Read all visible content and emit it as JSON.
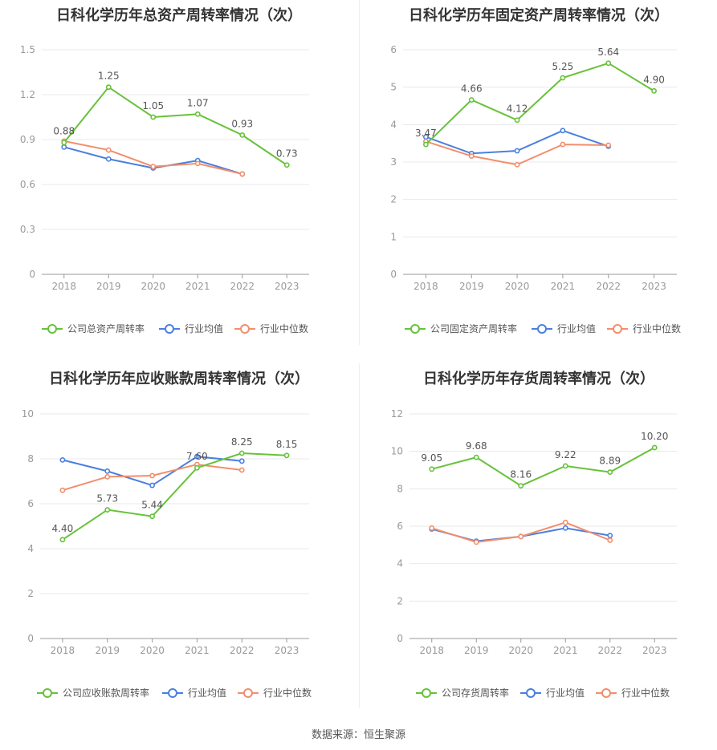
{
  "colors": {
    "company": "#67c23a",
    "avg": "#4a7fe0",
    "median": "#f28e6c",
    "grid": "#e8e8ee",
    "axis": "#999999",
    "tick": "#999999",
    "label": "#555555"
  },
  "footer": "数据来源：恒生聚源",
  "chart_data": [
    {
      "type": "line",
      "title": "日科化学历年总资产周转率情况（次）",
      "categories": [
        "2018",
        "2019",
        "2020",
        "2021",
        "2022",
        "2023"
      ],
      "ylim": [
        0,
        1.5
      ],
      "yticks": [
        "0",
        "0.3",
        "0.6",
        "0.9",
        "1.2",
        "1.5"
      ],
      "series": [
        {
          "name": "公司总资产周转率",
          "key": "company",
          "values": [
            0.88,
            1.25,
            1.05,
            1.07,
            0.93,
            0.73
          ],
          "labels": [
            "0.88",
            "1.25",
            "1.05",
            "1.07",
            "0.93",
            "0.73"
          ]
        },
        {
          "name": "行业均值",
          "key": "avg",
          "values": [
            0.85,
            0.77,
            0.71,
            0.76,
            0.67,
            null
          ]
        },
        {
          "name": "行业中位数",
          "key": "median",
          "values": [
            0.89,
            0.83,
            0.72,
            0.74,
            0.67,
            null
          ]
        }
      ]
    },
    {
      "type": "line",
      "title": "日科化学历年固定资产周转率情况（次）",
      "categories": [
        "2018",
        "2019",
        "2020",
        "2021",
        "2022",
        "2023"
      ],
      "ylim": [
        0,
        6
      ],
      "yticks": [
        "0",
        "1",
        "2",
        "3",
        "4",
        "5",
        "6"
      ],
      "series": [
        {
          "name": "公司固定资产周转率",
          "key": "company",
          "values": [
            3.47,
            4.66,
            4.12,
            5.25,
            5.64,
            4.9
          ],
          "labels": [
            "3.47",
            "4.66",
            "4.12",
            "5.25",
            "5.64",
            "4.90"
          ]
        },
        {
          "name": "行业均值",
          "key": "avg",
          "values": [
            3.67,
            3.23,
            3.3,
            3.84,
            3.42,
            null
          ]
        },
        {
          "name": "行业中位数",
          "key": "median",
          "values": [
            3.55,
            3.16,
            2.93,
            3.47,
            3.45,
            null
          ]
        }
      ]
    },
    {
      "type": "line",
      "title": "日科化学历年应收账款周转率情况（次）",
      "categories": [
        "2018",
        "2019",
        "2020",
        "2021",
        "2022",
        "2023"
      ],
      "ylim": [
        0,
        10
      ],
      "yticks": [
        "0",
        "2",
        "4",
        "6",
        "8",
        "10"
      ],
      "series": [
        {
          "name": "公司应收账款周转率",
          "key": "company",
          "values": [
            4.4,
            5.73,
            5.44,
            7.6,
            8.25,
            8.15
          ],
          "labels": [
            "4.40",
            "5.73",
            "5.44",
            "7.60",
            "8.25",
            "8.15"
          ]
        },
        {
          "name": "行业均值",
          "key": "avg",
          "values": [
            7.95,
            7.45,
            6.82,
            8.1,
            7.9,
            null
          ]
        },
        {
          "name": "行业中位数",
          "key": "median",
          "values": [
            6.6,
            7.2,
            7.25,
            7.75,
            7.5,
            null
          ]
        }
      ]
    },
    {
      "type": "line",
      "title": "日科化学历年存货周转率情况（次）",
      "categories": [
        "2018",
        "2019",
        "2020",
        "2021",
        "2022",
        "2023"
      ],
      "ylim": [
        0,
        12
      ],
      "yticks": [
        "0",
        "2",
        "4",
        "6",
        "8",
        "10",
        "12"
      ],
      "series": [
        {
          "name": "公司存货周转率",
          "key": "company",
          "values": [
            9.05,
            9.68,
            8.16,
            9.22,
            8.89,
            10.2
          ],
          "labels": [
            "9.05",
            "9.68",
            "8.16",
            "9.22",
            "8.89",
            "10.20"
          ]
        },
        {
          "name": "行业均值",
          "key": "avg",
          "values": [
            5.85,
            5.2,
            5.45,
            5.9,
            5.5,
            null
          ]
        },
        {
          "name": "行业中位数",
          "key": "median",
          "values": [
            5.9,
            5.15,
            5.45,
            6.2,
            5.25,
            null
          ]
        }
      ]
    }
  ]
}
